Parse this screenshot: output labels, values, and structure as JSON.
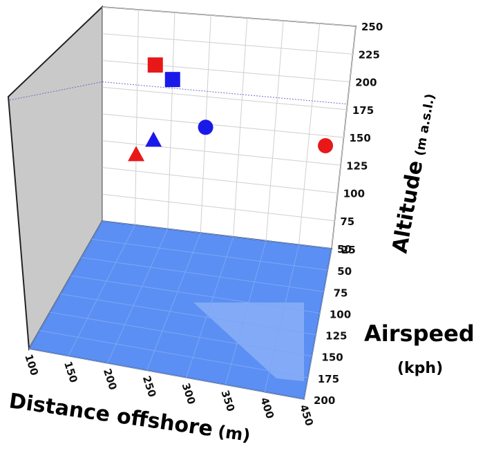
{
  "chart_data": {
    "type": "scatter",
    "projection": "3d",
    "title": "",
    "xlabel": "Distance offshore",
    "xunit": "(m)",
    "ylabel": "Altitude",
    "yunit": "(m a.s.l.)",
    "zlabel": "Airspeed",
    "zunit": "(kph)",
    "xlim": [
      100,
      450
    ],
    "ylim": [
      50,
      250
    ],
    "zlim": [
      25,
      200
    ],
    "x_ticks": [
      "100",
      "150",
      "200",
      "250",
      "300",
      "350",
      "400",
      "450"
    ],
    "y_ticks": [
      "50",
      "75",
      "100",
      "125",
      "150",
      "175",
      "200",
      "225",
      "250"
    ],
    "z_ticks": [
      "25",
      "50",
      "75",
      "100",
      "125",
      "150",
      "175",
      "200"
    ],
    "grid": true,
    "floor_color": "#5b8ff3",
    "wall_color": "#c9c9c9",
    "points": [
      {
        "shape": "square",
        "color": "#e81818",
        "x": 175,
        "y": 200,
        "z": 25
      },
      {
        "shape": "square",
        "color": "#1a1ae8",
        "x": 200,
        "y": 188,
        "z": 25
      },
      {
        "shape": "circle",
        "color": "#1a1ae8",
        "x": 250,
        "y": 147,
        "z": 25
      },
      {
        "shape": "circle",
        "color": "#e81818",
        "x": 425,
        "y": 141,
        "z": 25
      },
      {
        "shape": "triangle",
        "color": "#1a1ae8",
        "x": 175,
        "y": 130,
        "z": 25
      },
      {
        "shape": "triangle",
        "color": "#e81818",
        "x": 150,
        "y": 115,
        "z": 25
      }
    ]
  }
}
